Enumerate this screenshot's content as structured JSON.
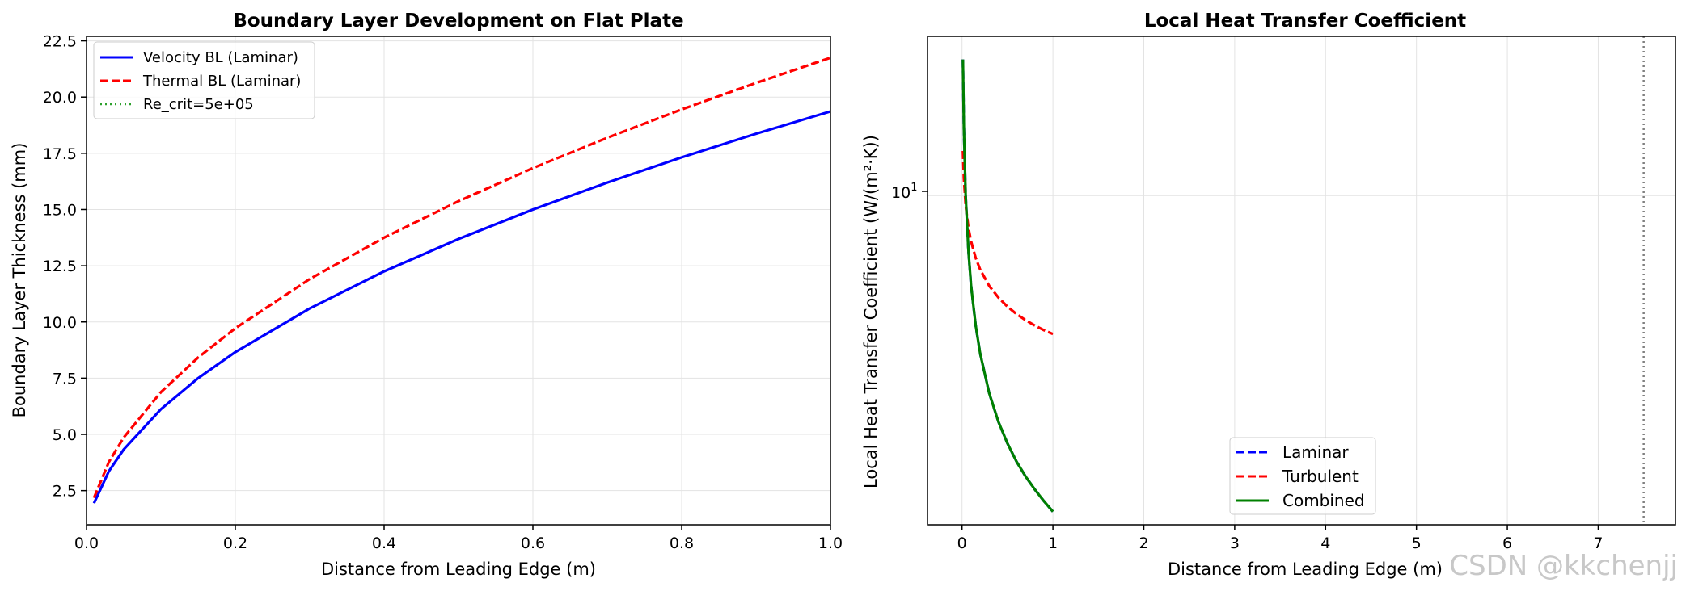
{
  "watermark": "CSDN @kkchenjj",
  "chart_data": [
    {
      "type": "line",
      "title": "Boundary Layer Development on Flat Plate",
      "xlabel": "Distance from Leading Edge (m)",
      "ylabel": "Boundary Layer Thickness (mm)",
      "xlim": [
        0.0,
        1.0
      ],
      "ylim": [
        0.98,
        22.7
      ],
      "xticks": [
        0.0,
        0.2,
        0.4,
        0.6,
        0.8,
        1.0
      ],
      "xtick_labels": [
        "0.0",
        "0.2",
        "0.4",
        "0.6",
        "0.8",
        "1.0"
      ],
      "yticks": [
        2.5,
        5.0,
        7.5,
        10.0,
        12.5,
        15.0,
        17.5,
        20.0,
        22.5
      ],
      "ytick_labels": [
        "2.5",
        "5.0",
        "7.5",
        "10.0",
        "12.5",
        "15.0",
        "17.5",
        "20.0",
        "22.5"
      ],
      "grid": true,
      "legend": "top-left",
      "series": [
        {
          "name": "Velocity BL (Laminar)",
          "color": "#0000ff",
          "style": "solid",
          "x": [
            0.01,
            0.03,
            0.05,
            0.1,
            0.15,
            0.2,
            0.3,
            0.4,
            0.5,
            0.6,
            0.7,
            0.8,
            0.9,
            1.0
          ],
          "y": [
            1.94,
            3.36,
            4.33,
            6.12,
            7.5,
            8.66,
            10.6,
            12.25,
            13.69,
            15.0,
            16.2,
            17.32,
            18.37,
            19.36
          ]
        },
        {
          "name": "Thermal BL (Laminar)",
          "color": "#ff0000",
          "style": "dashed",
          "x": [
            0.01,
            0.03,
            0.05,
            0.1,
            0.15,
            0.2,
            0.3,
            0.4,
            0.5,
            0.6,
            0.7,
            0.8,
            0.9,
            1.0
          ],
          "y": [
            2.18,
            3.77,
            4.86,
            6.88,
            8.42,
            9.72,
            11.91,
            13.75,
            15.37,
            16.84,
            18.19,
            19.45,
            20.63,
            21.75
          ]
        },
        {
          "name": "Re_crit=5e+05",
          "color": "#2ca02c",
          "style": "dotted",
          "x": [],
          "y": []
        }
      ]
    },
    {
      "type": "line",
      "title": "Local Heat Transfer Coefficient",
      "xlabel": "Distance from Leading Edge (m)",
      "ylabel": "Local Heat Transfer Coefficient (W/(m²·K))",
      "xscale": "linear",
      "yscale": "log",
      "xlim": [
        -0.38,
        7.85
      ],
      "ylim": [
        1.87,
        22.5
      ],
      "xticks": [
        0,
        1,
        2,
        3,
        4,
        5,
        6,
        7
      ],
      "xtick_labels": [
        "0",
        "1",
        "2",
        "3",
        "4",
        "5",
        "6",
        "7"
      ],
      "yticks": [
        10
      ],
      "ytick_base": "10",
      "ytick_exp": "1",
      "grid": true,
      "legend": "bottom-center",
      "vline": {
        "x": 7.5,
        "color": "#808080",
        "style": "dotted"
      },
      "series": [
        {
          "name": "Laminar",
          "color": "#0000ff",
          "style": "dashed",
          "x": [
            0.01,
            0.02,
            0.04,
            0.07,
            0.1,
            0.15,
            0.2,
            0.3,
            0.4,
            0.5,
            0.6,
            0.7,
            0.8,
            0.9,
            1.0
          ],
          "y": [
            20.0,
            14.14,
            10.0,
            7.56,
            6.32,
            5.16,
            4.47,
            3.65,
            3.16,
            2.83,
            2.58,
            2.39,
            2.24,
            2.11,
            2.0
          ]
        },
        {
          "name": "Turbulent",
          "color": "#ff0000",
          "style": "dashed",
          "x": [
            0.01,
            0.02,
            0.04,
            0.07,
            0.1,
            0.15,
            0.2,
            0.3,
            0.4,
            0.5,
            0.6,
            0.7,
            0.8,
            0.9,
            1.0
          ],
          "y": [
            12.55,
            10.93,
            9.51,
            8.49,
            7.92,
            7.28,
            6.86,
            6.31,
            5.95,
            5.68,
            5.47,
            5.3,
            5.16,
            5.04,
            4.94
          ]
        },
        {
          "name": "Combined",
          "color": "#008000",
          "style": "solid",
          "x": [
            0.01,
            0.02,
            0.04,
            0.07,
            0.1,
            0.15,
            0.2,
            0.3,
            0.4,
            0.5,
            0.6,
            0.7,
            0.8,
            0.9,
            1.0
          ],
          "y": [
            20.0,
            14.14,
            10.0,
            7.56,
            6.32,
            5.16,
            4.47,
            3.65,
            3.16,
            2.83,
            2.58,
            2.39,
            2.24,
            2.11,
            2.0
          ]
        }
      ]
    }
  ]
}
